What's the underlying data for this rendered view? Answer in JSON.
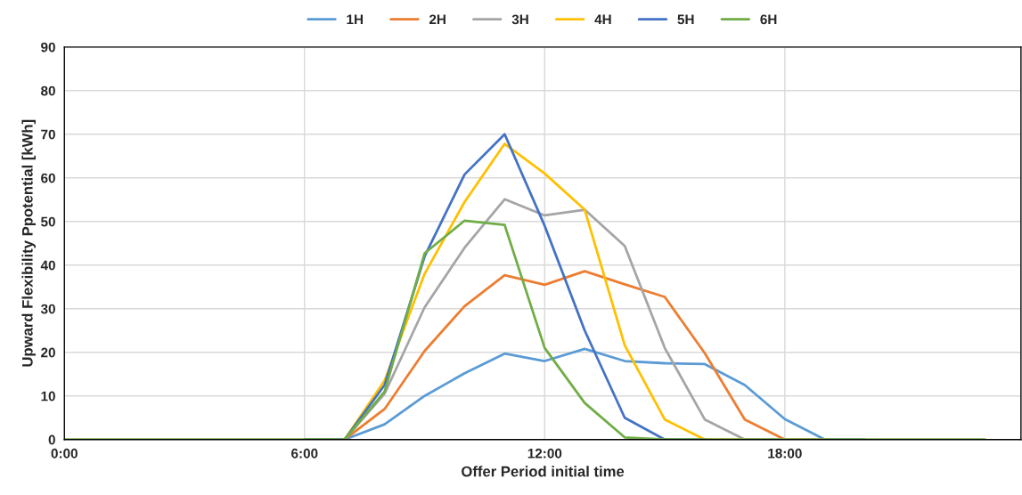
{
  "chart_data": {
    "type": "line",
    "xlabel": "Offer Period initial time",
    "ylabel": "Upward Flexibility Ppotential [kWh]",
    "x": [
      0,
      1,
      2,
      3,
      4,
      5,
      6,
      7,
      8,
      9,
      10,
      11,
      12,
      13,
      14,
      15,
      16,
      17,
      18,
      19,
      20,
      21,
      22,
      23
    ],
    "series": [
      {
        "name": "1H",
        "color": "#5b9bd5",
        "values": [
          null,
          null,
          null,
          null,
          null,
          null,
          0,
          0,
          3.5,
          10,
          15.2,
          19.7,
          18,
          20.8,
          18,
          17.5,
          17.3,
          12.5,
          4.7,
          0,
          0,
          null,
          null,
          null
        ]
      },
      {
        "name": "2H",
        "color": "#ed7d31",
        "values": [
          null,
          null,
          null,
          null,
          null,
          null,
          0,
          0,
          7,
          20.3,
          30.6,
          37.7,
          35.5,
          38.6,
          35.6,
          32.7,
          19.8,
          4.6,
          0,
          0,
          null,
          null,
          null,
          null
        ]
      },
      {
        "name": "3H",
        "color": "#a5a5a5",
        "values": [
          null,
          null,
          null,
          null,
          null,
          null,
          0,
          0,
          10.5,
          30.3,
          44,
          55.1,
          51.4,
          52.7,
          44.4,
          21,
          4.6,
          0,
          0,
          null,
          null,
          null,
          null,
          null
        ]
      },
      {
        "name": "4H",
        "color": "#ffc000",
        "values": [
          null,
          null,
          null,
          null,
          null,
          null,
          0,
          0,
          13.5,
          38,
          54.5,
          67.8,
          61,
          52.7,
          21.6,
          4.6,
          0,
          0,
          null,
          null,
          null,
          null,
          null,
          null
        ]
      },
      {
        "name": "5H",
        "color": "#4472c4",
        "values": [
          null,
          null,
          null,
          null,
          null,
          null,
          0,
          0,
          12.5,
          42,
          60.8,
          70,
          49,
          25,
          5,
          0,
          0,
          null,
          null,
          null,
          null,
          null,
          null,
          null
        ]
      },
      {
        "name": "6H",
        "color": "#70ad47",
        "values": [
          0,
          0,
          0,
          0,
          0,
          0,
          0,
          0,
          11,
          42.7,
          50.2,
          49.2,
          21,
          8.4,
          0.5,
          0,
          0,
          0,
          0,
          0,
          0,
          0,
          0,
          0
        ]
      }
    ],
    "xlim": [
      0,
      23.9
    ],
    "xticks": [
      {
        "value": 0,
        "label": "0:00"
      },
      {
        "value": 6,
        "label": "6:00"
      },
      {
        "value": 12,
        "label": "12:00"
      },
      {
        "value": 18,
        "label": "18:00"
      }
    ],
    "ylim": [
      0,
      90
    ],
    "yticks": [
      0,
      10,
      20,
      30,
      40,
      50,
      60,
      70,
      80,
      90
    ],
    "grid": true,
    "legend": "top",
    "marker": "none",
    "line_style": "solid"
  }
}
